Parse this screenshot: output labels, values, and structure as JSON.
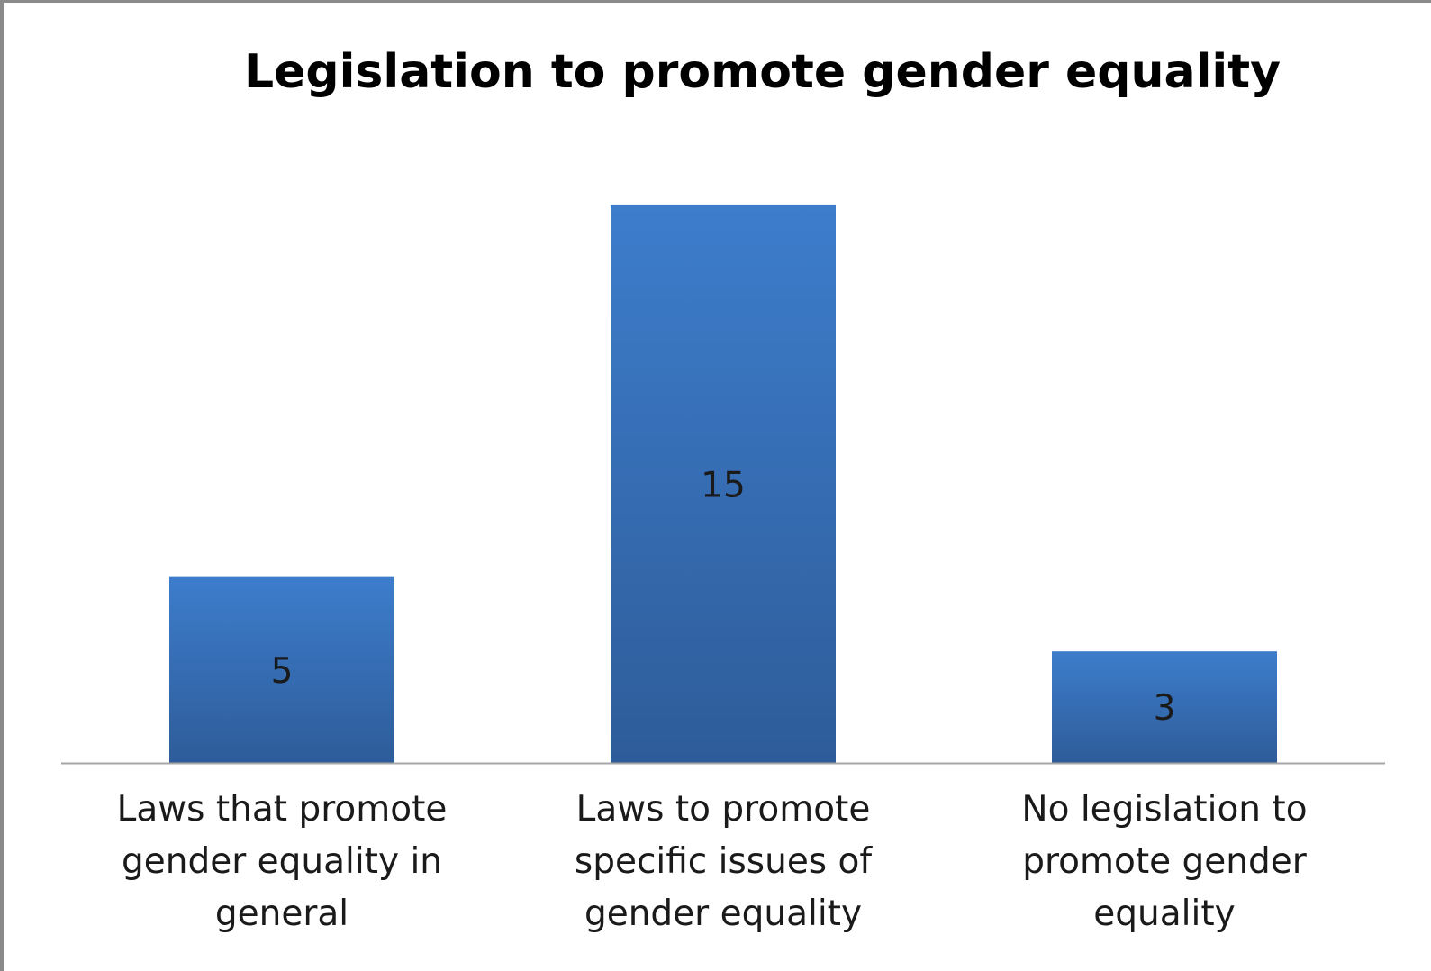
{
  "chart_data": {
    "type": "bar",
    "title": "Legislation to promote gender equality",
    "categories": [
      [
        "Laws that promote",
        "gender equality in",
        "general"
      ],
      [
        "Laws to promote",
        "specific issues of",
        "gender equality"
      ],
      [
        "No legislation to",
        "promote gender",
        "equality"
      ]
    ],
    "values": [
      5,
      15,
      3
    ],
    "data_labels": [
      "5",
      "15",
      "3"
    ],
    "ylim": [
      0,
      16.5
    ],
    "grid": false,
    "legend": "none",
    "colors": {
      "bar_top": "#3D7DCC",
      "bar_bottom": "#2E5C99",
      "axis": "#A6A6A6",
      "label": "#1a1a1a"
    }
  }
}
